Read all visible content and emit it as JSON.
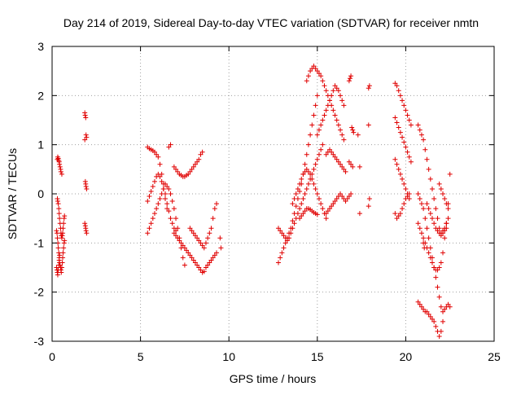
{
  "chart_data": {
    "type": "scatter",
    "title": "Day 214 of 2019, Sidereal Day-to-day VTEC variation (SDTVAR) for receiver nmtn",
    "xlabel": "GPS time / hours",
    "ylabel": "SDTVAR / TECUs",
    "xlim": [
      0,
      25
    ],
    "ylim": [
      -3,
      3
    ],
    "x_ticks": [
      "0",
      "5",
      "10",
      "15",
      "20",
      "25"
    ],
    "y_ticks": [
      "-3",
      "-2",
      "-1",
      "0",
      "1",
      "2",
      "3"
    ],
    "grid": true,
    "marker": "+",
    "marker_color": "#e00000",
    "series": [
      {
        "name": "s1",
        "x": [
          0.3,
          0.32,
          0.35,
          0.38,
          0.4,
          0.42,
          0.45,
          0.48,
          0.5,
          0.55
        ],
        "y": [
          0.7,
          0.75,
          0.72,
          0.68,
          0.65,
          0.6,
          0.55,
          0.5,
          0.45,
          0.4
        ]
      },
      {
        "name": "s2",
        "x": [
          0.25,
          0.28,
          0.3,
          0.33,
          0.35,
          0.38,
          0.4,
          0.42,
          0.45,
          0.48,
          0.5,
          0.52,
          0.55,
          0.58,
          0.6,
          0.62,
          0.65,
          0.68,
          0.7
        ],
        "y": [
          -0.75,
          -0.8,
          -0.9,
          -1.0,
          -1.1,
          -1.2,
          -1.3,
          -1.4,
          -1.45,
          -1.5,
          -1.55,
          -1.6,
          -1.5,
          -1.4,
          -1.3,
          -1.2,
          -1.1,
          -1.0,
          -0.95
        ]
      },
      {
        "name": "s3",
        "x": [
          0.3,
          0.32,
          0.35,
          0.38,
          0.4,
          0.42,
          0.45,
          0.48,
          0.5,
          0.52,
          0.55,
          0.58,
          0.6,
          0.62,
          0.65,
          0.68,
          0.7
        ],
        "y": [
          -0.1,
          -0.15,
          -0.2,
          -0.3,
          -0.4,
          -0.5,
          -0.6,
          -0.7,
          -0.8,
          -0.85,
          -0.9,
          -0.85,
          -0.8,
          -0.7,
          -0.6,
          -0.5,
          -0.45
        ]
      },
      {
        "name": "s4",
        "x": [
          0.25,
          0.28,
          0.3,
          0.32,
          0.35,
          0.38,
          0.4,
          0.42
        ],
        "y": [
          -1.5,
          -1.55,
          -1.6,
          -1.65,
          -1.55,
          -1.45,
          -1.35,
          -1.25
        ]
      },
      {
        "name": "s5",
        "x": [
          1.85,
          1.87,
          1.9,
          1.92,
          1.95,
          1.85,
          1.88,
          1.9,
          1.92,
          1.95,
          1.85,
          1.88,
          1.9,
          1.92,
          1.95
        ],
        "y": [
          1.65,
          1.6,
          1.55,
          1.2,
          1.15,
          1.1,
          0.25,
          0.2,
          0.15,
          0.1,
          -0.6,
          -0.65,
          -0.7,
          -0.75,
          -0.8
        ]
      },
      {
        "name": "s6",
        "x": [
          5.4,
          5.5,
          5.6,
          5.7,
          5.8,
          5.9,
          6.0,
          6.1,
          6.2,
          6.3,
          6.4,
          6.5,
          6.6,
          6.7,
          6.8,
          6.9,
          7.0
        ],
        "y": [
          0.95,
          0.92,
          0.9,
          0.88,
          0.85,
          0.8,
          0.75,
          0.6,
          0.4,
          0.2,
          0.0,
          -0.2,
          -0.35,
          -0.5,
          -0.6,
          -0.7,
          -0.75
        ]
      },
      {
        "name": "s7",
        "x": [
          5.4,
          5.5,
          5.6,
          5.7,
          5.8,
          5.9,
          6.0,
          6.1,
          6.2,
          6.3,
          6.4,
          6.5,
          6.6,
          6.7,
          6.8,
          6.9,
          7.0,
          7.1,
          7.2,
          7.3,
          7.4,
          7.5
        ],
        "y": [
          -0.8,
          -0.7,
          -0.6,
          -0.5,
          -0.4,
          -0.3,
          -0.2,
          -0.1,
          0.0,
          0.1,
          0.2,
          0.15,
          0.1,
          0.0,
          -0.15,
          -0.3,
          -0.5,
          -0.7,
          -0.9,
          -1.1,
          -1.3,
          -1.45
        ]
      },
      {
        "name": "s8",
        "x": [
          5.4,
          5.5,
          5.6,
          5.7,
          5.8,
          5.9,
          6.0,
          6.1,
          6.2,
          6.3,
          6.4,
          6.5
        ],
        "y": [
          -0.15,
          -0.05,
          0.05,
          0.15,
          0.25,
          0.35,
          0.4,
          0.35,
          0.25,
          0.1,
          -0.1,
          -0.3
        ]
      },
      {
        "name": "s9",
        "x": [
          6.9,
          7.0,
          7.1,
          7.2,
          7.3,
          7.4,
          7.5,
          7.6,
          7.7,
          7.8,
          7.9,
          8.0,
          8.1,
          8.2,
          8.3,
          8.4,
          8.5
        ],
        "y": [
          0.55,
          0.5,
          0.45,
          0.4,
          0.38,
          0.35,
          0.35,
          0.38,
          0.4,
          0.45,
          0.5,
          0.55,
          0.6,
          0.65,
          0.7,
          0.8,
          0.85
        ]
      },
      {
        "name": "s10",
        "x": [
          6.9,
          7.0,
          7.1,
          7.2,
          7.3,
          7.4,
          7.5,
          7.6,
          7.7,
          7.8,
          7.9,
          8.0,
          8.1,
          8.2,
          8.3,
          8.4,
          8.5,
          8.6
        ],
        "y": [
          -0.8,
          -0.85,
          -0.9,
          -0.95,
          -1.0,
          -1.05,
          -1.1,
          -1.15,
          -1.2,
          -1.25,
          -1.3,
          -1.35,
          -1.4,
          -1.45,
          -1.5,
          -1.55,
          -1.6,
          -1.58
        ]
      },
      {
        "name": "s11",
        "x": [
          7.8,
          7.9,
          8.0,
          8.1,
          8.2,
          8.3,
          8.4,
          8.5,
          8.6,
          8.7,
          8.8,
          8.9,
          9.0,
          9.1,
          9.2,
          9.3
        ],
        "y": [
          -0.7,
          -0.75,
          -0.8,
          -0.85,
          -0.9,
          -0.95,
          -1.0,
          -1.05,
          -1.1,
          -1.0,
          -0.9,
          -0.8,
          -0.7,
          -0.5,
          -0.3,
          -0.2
        ]
      },
      {
        "name": "s12",
        "x": [
          8.7,
          8.8,
          8.9,
          9.0,
          9.1,
          9.2,
          9.3
        ],
        "y": [
          -1.5,
          -1.45,
          -1.4,
          -1.35,
          -1.3,
          -1.25,
          -1.2
        ]
      },
      {
        "name": "s13",
        "x": [
          6.6,
          6.7,
          9.5,
          9.55
        ],
        "y": [
          0.95,
          1.0,
          -0.9,
          -1.1
        ]
      },
      {
        "name": "s14",
        "x": [
          12.8,
          12.9,
          13.0,
          13.1,
          13.2,
          13.3,
          13.4,
          13.5,
          13.6,
          13.7,
          13.8,
          13.9,
          14.0,
          14.1,
          14.2,
          14.3,
          14.4,
          14.5,
          14.6,
          14.7,
          14.8,
          14.9,
          15.0
        ],
        "y": [
          -1.4,
          -1.3,
          -1.2,
          -1.1,
          -1.0,
          -0.9,
          -0.8,
          -0.7,
          -0.55,
          -0.4,
          -0.25,
          -0.1,
          0.05,
          0.2,
          0.4,
          0.6,
          0.8,
          1.0,
          1.2,
          1.4,
          1.6,
          1.8,
          2.0
        ]
      },
      {
        "name": "s15",
        "x": [
          12.8,
          12.9,
          13.0,
          13.1,
          13.2,
          13.3,
          13.4,
          13.5,
          13.6,
          13.7,
          13.8,
          13.9,
          14.0,
          14.1,
          14.2,
          14.3,
          14.4,
          14.5,
          14.6,
          14.7,
          14.8,
          14.9,
          15.0,
          15.1,
          15.2,
          15.3
        ],
        "y": [
          -0.7,
          -0.75,
          -0.8,
          -0.85,
          -0.9,
          -0.95,
          -0.9,
          -0.8,
          -0.7,
          -0.6,
          -0.5,
          -0.4,
          -0.3,
          -0.2,
          -0.1,
          0.0,
          0.1,
          0.2,
          0.3,
          0.4,
          0.5,
          0.6,
          0.7,
          0.8,
          0.9,
          1.0
        ]
      },
      {
        "name": "s16",
        "x": [
          13.6,
          13.7,
          13.8,
          13.9,
          14.0,
          14.1,
          14.2,
          14.3,
          14.4,
          14.5,
          14.6,
          14.7,
          14.8,
          14.9,
          15.0,
          15.1,
          15.2,
          15.3,
          15.4,
          15.5
        ],
        "y": [
          -0.2,
          -0.1,
          0.0,
          0.1,
          0.2,
          0.3,
          0.4,
          0.45,
          0.5,
          0.45,
          0.4,
          0.3,
          0.2,
          0.1,
          0.0,
          -0.1,
          -0.2,
          -0.3,
          -0.4,
          -0.5
        ]
      },
      {
        "name": "s17",
        "x": [
          14.4,
          14.5,
          14.6,
          14.7,
          14.8,
          14.9,
          15.0,
          15.1,
          15.2,
          15.3,
          15.4,
          15.5,
          15.6,
          15.7,
          15.8,
          15.9,
          16.0,
          16.1,
          16.2,
          16.3,
          16.4,
          16.5
        ],
        "y": [
          2.3,
          2.4,
          2.5,
          2.55,
          2.6,
          2.55,
          2.5,
          2.45,
          2.4,
          2.3,
          2.2,
          2.1,
          2.0,
          1.9,
          1.8,
          1.7,
          1.6,
          1.5,
          1.4,
          1.3,
          1.2,
          1.1
        ]
      },
      {
        "name": "s18",
        "x": [
          15.0,
          15.1,
          15.2,
          15.3,
          15.4,
          15.5,
          15.6,
          15.7,
          15.8,
          15.9,
          16.0,
          16.1,
          16.2,
          16.3,
          16.4,
          16.5
        ],
        "y": [
          1.2,
          1.3,
          1.4,
          1.5,
          1.6,
          1.7,
          1.8,
          1.9,
          2.0,
          2.1,
          2.2,
          2.15,
          2.1,
          2.0,
          1.9,
          1.8
        ]
      },
      {
        "name": "s19",
        "x": [
          14.0,
          14.1,
          14.2,
          14.3,
          14.4,
          14.5,
          14.6,
          14.7,
          14.8,
          14.9,
          15.0
        ],
        "y": [
          -0.5,
          -0.45,
          -0.4,
          -0.35,
          -0.3,
          -0.3,
          -0.32,
          -0.35,
          -0.38,
          -0.4,
          -0.42
        ]
      },
      {
        "name": "s20",
        "x": [
          15.5,
          15.6,
          15.7,
          15.8,
          15.9,
          16.0,
          16.1,
          16.2,
          16.3,
          16.4,
          16.5,
          16.6
        ],
        "y": [
          0.8,
          0.85,
          0.9,
          0.85,
          0.8,
          0.75,
          0.7,
          0.65,
          0.6,
          0.55,
          0.5,
          0.45
        ]
      },
      {
        "name": "s21",
        "x": [
          15.5,
          15.6,
          15.7,
          15.8,
          15.9,
          16.0,
          16.1,
          16.2,
          16.3,
          16.4,
          16.5,
          16.6,
          16.7,
          16.8,
          16.9
        ],
        "y": [
          -0.4,
          -0.35,
          -0.3,
          -0.25,
          -0.2,
          -0.15,
          -0.1,
          -0.05,
          0.0,
          -0.05,
          -0.1,
          -0.15,
          -0.1,
          -0.05,
          0.0
        ]
      },
      {
        "name": "s22",
        "x": [
          16.8,
          16.85,
          16.9,
          16.95,
          17.0,
          17.05,
          16.8,
          16.9,
          17.0,
          17.3,
          17.4,
          17.4,
          17.9,
          17.95,
          17.9,
          17.95,
          17.9
        ],
        "y": [
          2.3,
          2.35,
          2.4,
          1.35,
          1.3,
          1.25,
          0.65,
          0.6,
          0.55,
          1.2,
          0.55,
          -0.4,
          2.15,
          2.2,
          1.4,
          -0.1,
          -0.25
        ]
      },
      {
        "name": "s23",
        "x": [
          19.4,
          19.5,
          19.6,
          19.7,
          19.8,
          19.9,
          20.0,
          20.1,
          20.2,
          20.3
        ],
        "y": [
          2.25,
          2.2,
          2.1,
          2.0,
          1.9,
          1.8,
          1.7,
          1.6,
          1.5,
          1.4
        ]
      },
      {
        "name": "s24",
        "x": [
          19.4,
          19.5,
          19.6,
          19.7,
          19.8,
          19.9,
          20.0,
          20.1,
          20.2,
          20.3
        ],
        "y": [
          1.55,
          1.45,
          1.35,
          1.25,
          1.15,
          1.05,
          0.95,
          0.85,
          0.75,
          0.65
        ]
      },
      {
        "name": "s25",
        "x": [
          19.4,
          19.5,
          19.6,
          19.7,
          19.8,
          19.9,
          20.0,
          20.1,
          20.2
        ],
        "y": [
          0.7,
          0.6,
          0.5,
          0.4,
          0.3,
          0.2,
          0.1,
          0.0,
          -0.1
        ]
      },
      {
        "name": "s26",
        "x": [
          19.4,
          19.5,
          19.6,
          19.7,
          19.8,
          19.9,
          20.0,
          20.1,
          20.2
        ],
        "y": [
          -0.4,
          -0.5,
          -0.45,
          -0.4,
          -0.3,
          -0.2,
          -0.1,
          -0.05,
          0.0
        ]
      },
      {
        "name": "s27",
        "x": [
          20.7,
          20.8,
          20.9,
          21.0,
          21.1,
          21.2,
          21.3,
          21.4,
          21.5,
          21.6,
          21.7,
          21.8,
          21.9,
          22.0,
          22.1,
          22.2,
          22.3,
          22.4
        ],
        "y": [
          1.4,
          1.3,
          1.2,
          1.1,
          0.9,
          0.7,
          0.5,
          0.3,
          0.1,
          -0.1,
          -0.3,
          -0.5,
          -0.7,
          -0.8,
          -0.75,
          -0.7,
          -0.6,
          -0.5
        ]
      },
      {
        "name": "s28",
        "x": [
          20.7,
          20.8,
          20.9,
          21.0,
          21.1,
          21.2,
          21.3,
          21.4,
          21.5,
          21.6,
          21.7,
          21.8,
          21.9,
          22.0,
          22.1,
          22.2,
          22.3,
          22.4,
          22.5
        ],
        "y": [
          0.0,
          -0.1,
          -0.2,
          -0.3,
          -0.5,
          -0.7,
          -0.9,
          -1.1,
          -1.3,
          -1.5,
          -1.7,
          -1.9,
          -2.1,
          -2.3,
          -2.4,
          -2.35,
          -2.3,
          -2.25,
          -2.3
        ]
      },
      {
        "name": "s29",
        "x": [
          20.7,
          20.8,
          20.9,
          21.0,
          21.1,
          21.2,
          21.3,
          21.4,
          21.5,
          21.6,
          21.7,
          21.8,
          21.9,
          22.0,
          22.1,
          22.2,
          22.3,
          22.4,
          22.5
        ],
        "y": [
          -0.6,
          -0.7,
          -0.8,
          -0.9,
          -1.0,
          -1.1,
          -1.2,
          -1.3,
          -1.4,
          -1.5,
          -1.55,
          -1.55,
          -1.5,
          -1.4,
          -1.2,
          -0.9,
          -0.6,
          -0.2,
          0.4
        ]
      },
      {
        "name": "s30",
        "x": [
          20.7,
          20.8,
          20.9,
          21.0,
          21.1,
          21.2,
          21.3,
          21.4,
          21.5,
          21.6,
          21.7,
          21.8,
          21.9,
          22.0,
          22.1
        ],
        "y": [
          -2.2,
          -2.25,
          -2.3,
          -2.35,
          -2.4,
          -2.4,
          -2.45,
          -2.5,
          -2.55,
          -2.6,
          -2.7,
          -2.8,
          -2.9,
          -2.8,
          -2.6
        ]
      },
      {
        "name": "s31",
        "x": [
          21.2,
          21.3,
          21.4,
          21.5,
          21.6,
          21.7,
          21.8,
          21.9,
          22.0,
          22.1,
          22.2,
          22.3
        ],
        "y": [
          -0.2,
          -0.3,
          -0.4,
          -0.5,
          -0.6,
          -0.7,
          -0.75,
          -0.8,
          -0.85,
          -0.8,
          -0.75,
          -0.7
        ]
      },
      {
        "name": "s32",
        "x": [
          21.9,
          22.0,
          22.1,
          22.2,
          22.3,
          22.4,
          21.0,
          21.05
        ],
        "y": [
          0.2,
          0.1,
          0.0,
          -0.1,
          -0.2,
          -0.3,
          -1.0,
          -1.1
        ]
      }
    ]
  }
}
